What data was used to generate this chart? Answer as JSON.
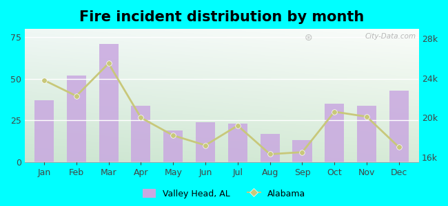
{
  "title": "Fire incident distribution by month",
  "months": [
    "Jan",
    "Feb",
    "Mar",
    "Apr",
    "May",
    "Jun",
    "Jul",
    "Aug",
    "Sep",
    "Oct",
    "Nov",
    "Dec"
  ],
  "valley_head_values": [
    37,
    52,
    71,
    34,
    19,
    24,
    23,
    17,
    13,
    35,
    34,
    43
  ],
  "alabama_values": [
    23800,
    22200,
    25500,
    20000,
    18200,
    17200,
    19200,
    16300,
    16500,
    20600,
    20100,
    17000
  ],
  "bar_color": "#c9a8e0",
  "bar_edge_color": "#b888cc",
  "line_color": "#c8c87a",
  "line_marker_color": "#c8c87a",
  "background_color": "#00ffff",
  "left_ylim": [
    0,
    80
  ],
  "left_yticks": [
    0,
    25,
    50,
    75
  ],
  "right_ylim": [
    15500,
    29000
  ],
  "right_yticks": [
    16000,
    20000,
    24000,
    28000
  ],
  "right_yticklabels": [
    "16k",
    "20k",
    "24k",
    "28k"
  ],
  "legend_labels": [
    "Valley Head, AL",
    "Alabama"
  ],
  "watermark": "City-Data.com",
  "title_fontsize": 15
}
